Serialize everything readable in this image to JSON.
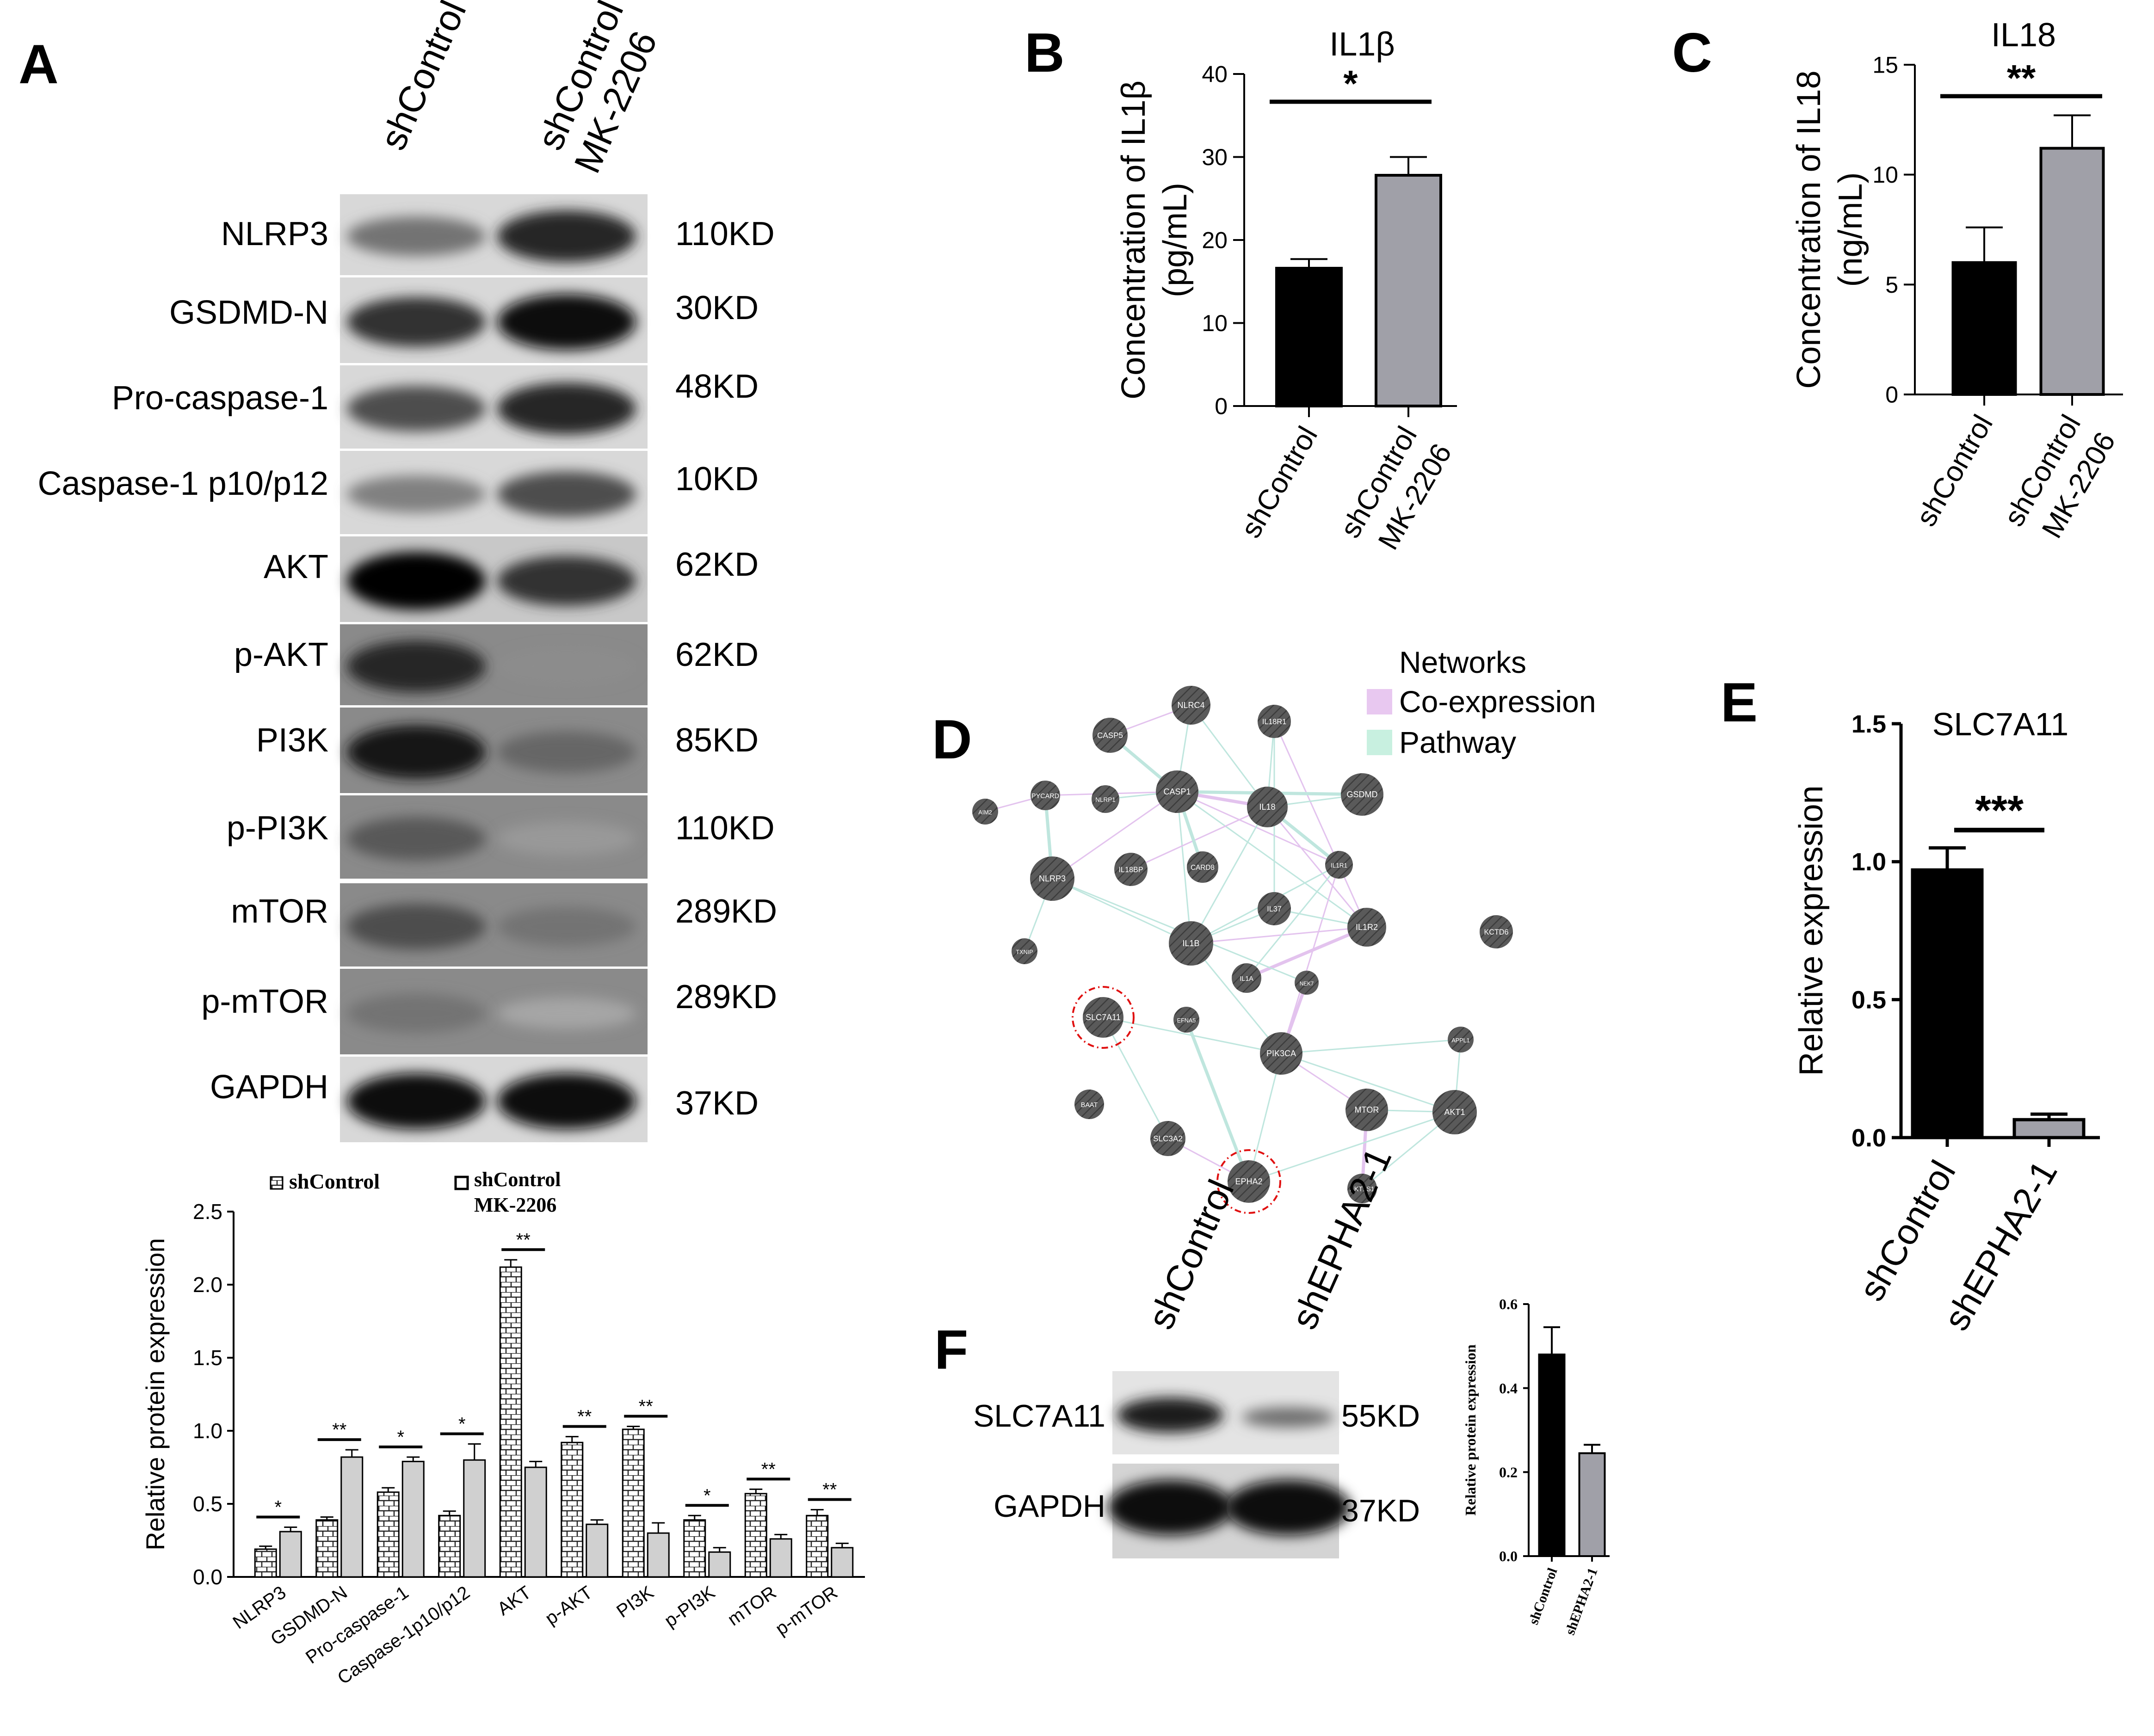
{
  "panel_letters": [
    "A",
    "B",
    "C",
    "D",
    "E",
    "F"
  ],
  "panel_a_blot": {
    "lanes": [
      [
        "shControl"
      ],
      [
        "shControl",
        "MK-2206"
      ]
    ],
    "rows": [
      {
        "label": "NLRP3",
        "kd": "110KD",
        "lane1": 0.55,
        "lane2": 0.85
      },
      {
        "label": "GSDMD-N",
        "kd": "30KD",
        "lane1": 0.8,
        "lane2": 0.95
      },
      {
        "label": "Pro-caspase-1",
        "kd": "48KD",
        "lane1": 0.7,
        "lane2": 0.85
      },
      {
        "label": "Caspase-1 p10/p12",
        "kd": "10KD",
        "lane1": 0.5,
        "lane2": 0.7
      },
      {
        "label": "AKT",
        "kd": "62KD",
        "lane1": 1.0,
        "lane2": 0.8
      },
      {
        "label": "p-AKT",
        "kd": "62KD",
        "lane1": 0.85,
        "lane2": 0.45
      },
      {
        "label": "PI3K",
        "kd": "85KD",
        "lane1": 0.9,
        "lane2": 0.6
      },
      {
        "label": "p-PI3K",
        "kd": "110KD",
        "lane1": 0.65,
        "lane2": 0.4
      },
      {
        "label": "mTOR",
        "kd": "289KD",
        "lane1": 0.7,
        "lane2": 0.55
      },
      {
        "label": "p-mTOR",
        "kd": "289KD",
        "lane1": 0.55,
        "lane2": 0.35
      },
      {
        "label": "GAPDH",
        "kd": "37KD",
        "lane1": 0.95,
        "lane2": 0.95
      }
    ]
  },
  "panel_d_network": {
    "legend_title": "Networks",
    "legend": [
      {
        "label": "Co-expression",
        "color": "#e8c8f0"
      },
      {
        "label": "Pathway",
        "color": "#c8f0e0"
      }
    ],
    "nodes": [
      "NLRC4",
      "CASP5",
      "IL18R1",
      "PYCARD",
      "NLRP1",
      "CASP1",
      "IL18",
      "GSDMD",
      "AIM2",
      "IL18BP",
      "CARD8",
      "IL1R1",
      "NLRP3",
      "IL37",
      "IL1R2",
      "KCTD6",
      "IL1B",
      "TXNIP",
      "IL1A",
      "NEK7",
      "SLC7A11",
      "EFNA5",
      "PIK3CA",
      "APPL1",
      "MTOR",
      "AKT1",
      "BAAT",
      "SLC3A2",
      "EPHA2",
      "AKT1S1"
    ],
    "highlighted": [
      "SLC7A11",
      "EPHA2"
    ]
  },
  "panel_f_blot": {
    "lanes": [
      "shControl",
      "shEPHA2-1"
    ],
    "rows": [
      {
        "label": "SLC7A11",
        "kd": "55KD"
      },
      {
        "label": "GAPDH",
        "kd": "37KD"
      }
    ]
  },
  "chart_data": [
    {
      "panel": "A",
      "type": "bar",
      "categories": [
        "NLRP3",
        "GSDMD-N",
        "Pro-caspase-1",
        "Caspase-1p10/p12",
        "AKT",
        "p-AKT",
        "PI3K",
        "p-PI3K",
        "mTOR",
        "p-mTOR"
      ],
      "series": [
        {
          "name": "shControl",
          "values": [
            0.19,
            0.39,
            0.58,
            0.42,
            2.12,
            0.92,
            1.01,
            0.39,
            0.57,
            0.42
          ],
          "errors": [
            0.02,
            0.02,
            0.03,
            0.03,
            0.05,
            0.04,
            0.02,
            0.03,
            0.03,
            0.04
          ],
          "color": "#ffffff"
        },
        {
          "name": "shControl MK-2206",
          "values": [
            0.31,
            0.82,
            0.79,
            0.8,
            0.75,
            0.36,
            0.3,
            0.17,
            0.26,
            0.2
          ],
          "errors": [
            0.03,
            0.05,
            0.03,
            0.11,
            0.04,
            0.03,
            0.07,
            0.03,
            0.03,
            0.03
          ],
          "color": "#d0d0d0"
        }
      ],
      "significance": [
        "*",
        "**",
        "*",
        "*",
        "**",
        "**",
        "**",
        "*",
        "**",
        "**"
      ],
      "ylabel": "Relative protein expression",
      "ylim": [
        0,
        2.5
      ],
      "yticks": [
        "0.0",
        "0.5",
        "1.0",
        "1.5",
        "2.0",
        "2.5"
      ]
    },
    {
      "panel": "B",
      "type": "bar",
      "title": "IL1β",
      "categories": [
        [
          "shControl"
        ],
        [
          "shControl",
          "MK-2206"
        ]
      ],
      "values": [
        16.6,
        27.8
      ],
      "errors": [
        1.1,
        2.2
      ],
      "colors": [
        "#000000",
        "#a0a0a8"
      ],
      "significance": "*",
      "ylabel": [
        "Concentration of IL1β",
        "(pg/mL)"
      ],
      "ylim": [
        0,
        40
      ],
      "yticks": [
        "0",
        "10",
        "20",
        "30",
        "40"
      ]
    },
    {
      "panel": "C",
      "type": "bar",
      "title": "IL18",
      "categories": [
        [
          "shControl"
        ],
        [
          "shControl",
          "MK-2206"
        ]
      ],
      "values": [
        6.0,
        11.2
      ],
      "errors": [
        1.6,
        1.5
      ],
      "colors": [
        "#000000",
        "#a0a0a8"
      ],
      "significance": "**",
      "ylabel": [
        "Concentration of IL18",
        "(ng/mL)"
      ],
      "ylim": [
        0,
        15
      ],
      "yticks": [
        "0",
        "5",
        "10",
        "15"
      ]
    },
    {
      "panel": "E",
      "type": "bar",
      "title": "SLC7A11",
      "categories": [
        [
          "shControl"
        ],
        [
          "shEPHA2-1"
        ]
      ],
      "values": [
        0.97,
        0.065
      ],
      "errors": [
        0.08,
        0.02
      ],
      "colors": [
        "#000000",
        "#a0a0a8"
      ],
      "significance": "***",
      "ylabel": [
        "Relative expression"
      ],
      "ylim": [
        0,
        1.5
      ],
      "yticks": [
        "0.0",
        "0.5",
        "1.0",
        "1.5"
      ]
    },
    {
      "panel": "F",
      "type": "bar",
      "categories": [
        [
          "shControl"
        ],
        [
          "shEPHA2-1"
        ]
      ],
      "values": [
        0.48,
        0.245
      ],
      "errors": [
        0.065,
        0.02
      ],
      "colors": [
        "#000000",
        "#a0a0a8"
      ],
      "ylabel": [
        "Relative protein expression"
      ],
      "ylim": [
        0,
        0.6
      ],
      "yticks": [
        "0.0",
        "0.2",
        "0.4",
        "0.6"
      ]
    }
  ]
}
